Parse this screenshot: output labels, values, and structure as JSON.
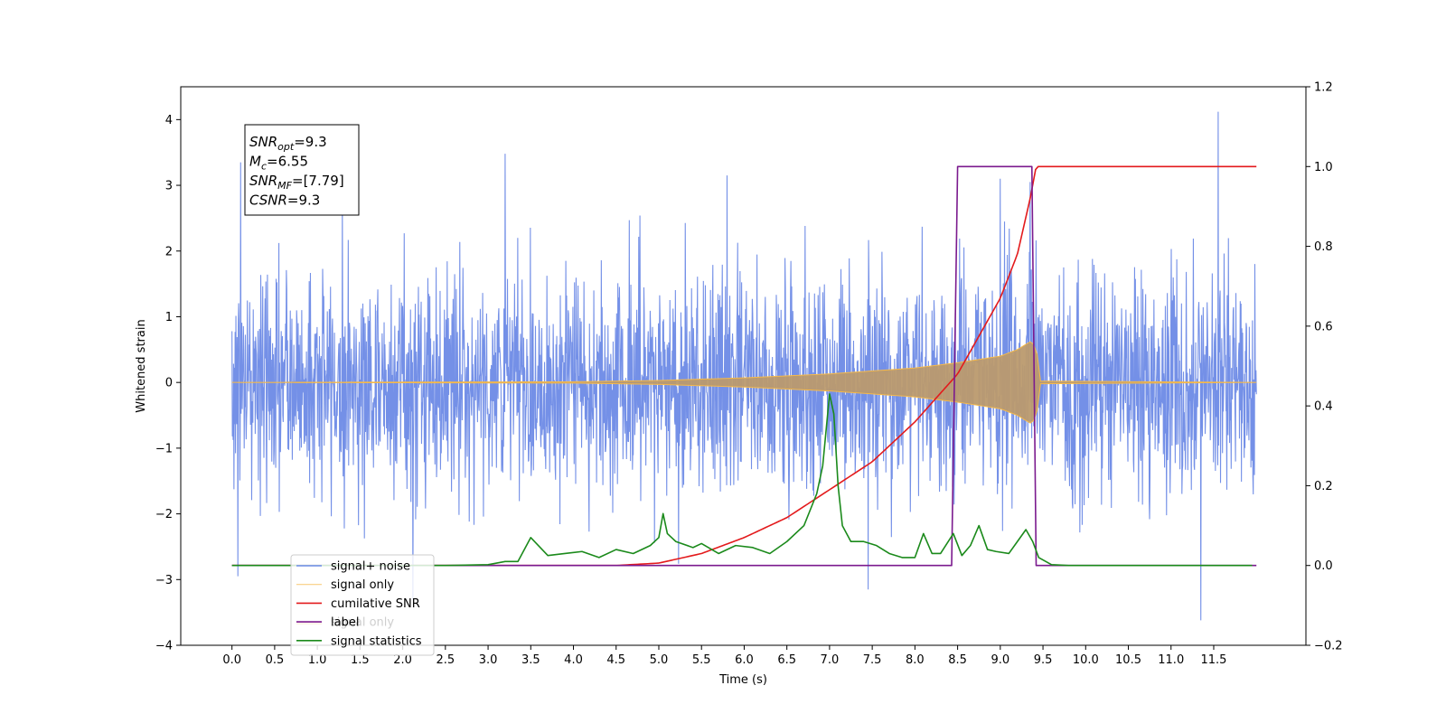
{
  "chart_data": {
    "type": "line",
    "title": "",
    "xlabel": "Time (s)",
    "ylabel": "Whitened strain",
    "y2label": "",
    "xlim": [
      -0.6,
      12.58
    ],
    "ylim": [
      -4,
      4.5
    ],
    "y2lim": [
      -0.2,
      1.2
    ],
    "xticks": [
      0.0,
      0.5,
      1.0,
      1.5,
      2.0,
      2.5,
      3.0,
      3.5,
      4.0,
      4.5,
      5.0,
      5.5,
      6.0,
      6.5,
      7.0,
      7.5,
      8.0,
      8.5,
      9.0,
      9.5,
      10.0,
      10.5,
      11.0,
      11.5
    ],
    "xtick_labels": [
      "0.0",
      "0.5",
      "1.0",
      "1.5",
      "2.0",
      "2.5",
      "3.0",
      "3.5",
      "4.0",
      "4.5",
      "5.0",
      "5.5",
      "6.0",
      "6.5",
      "7.0",
      "7.5",
      "8.0",
      "8.5",
      "9.0",
      "9.5",
      "10.0",
      "10.5",
      "11.0",
      "11.5"
    ],
    "yticks": [
      -4,
      -3,
      -2,
      -1,
      0,
      1,
      2,
      3,
      4
    ],
    "ytick_labels": [
      "−4",
      "−3",
      "−2",
      "−1",
      "0",
      "1",
      "2",
      "3",
      "4"
    ],
    "y2ticks": [
      -0.2,
      0.0,
      0.2,
      0.4,
      0.6,
      0.8,
      1.0,
      1.2
    ],
    "y2tick_labels": [
      "−0.2",
      "0.0",
      "0.2",
      "0.4",
      "0.6",
      "0.8",
      "1.0",
      "1.2"
    ],
    "grid": false,
    "legend_position": "bottom-left",
    "annotation": [
      {
        "sym": "SNR",
        "sub": "opt",
        "val": "=9.3"
      },
      {
        "sym": "M",
        "sub": "c",
        "val": "=6.55"
      },
      {
        "sym": "SNR",
        "sub": "MF",
        "val": "=[7.79]"
      },
      {
        "sym": "CSNR",
        "sub": "",
        "val": "=9.3"
      }
    ],
    "series": [
      {
        "name": "signal+ noise",
        "color": "#6d8ae6",
        "axis": "left",
        "x_range": [
          0.0,
          12.0
        ],
        "std": 0.8,
        "peaks_max": [
          3.35,
          3.48,
          3.15,
          3.1,
          3.3,
          3.05,
          4.12
        ],
        "min": -3.62,
        "spikes": [
          [
            0.1,
            3.35
          ],
          [
            3.2,
            3.48
          ],
          [
            5.8,
            3.15
          ],
          [
            9.0,
            3.1
          ],
          [
            9.35,
            3.05
          ],
          [
            11.55,
            4.12
          ],
          [
            11.35,
            -3.62
          ],
          [
            2.12,
            -3.3
          ],
          [
            7.45,
            -3.15
          ],
          [
            0.07,
            -2.95
          ]
        ]
      },
      {
        "name": "signal only",
        "color": "#f5b94a",
        "axis": "left",
        "x": [
          0.0,
          4.0,
          5.0,
          6.0,
          7.0,
          8.0,
          8.5,
          9.0,
          9.2,
          9.35,
          9.42,
          9.47,
          12.0
        ],
        "amplitude": [
          0.0,
          0.01,
          0.03,
          0.07,
          0.13,
          0.22,
          0.3,
          0.4,
          0.5,
          0.62,
          0.55,
          0.02,
          0.0
        ]
      },
      {
        "name": "cumilative SNR",
        "color": "#e31a1c",
        "axis": "right",
        "x": [
          0.0,
          4.5,
          5.0,
          5.5,
          6.0,
          6.5,
          7.0,
          7.5,
          8.0,
          8.5,
          9.0,
          9.2,
          9.35,
          9.42,
          9.45,
          12.0
        ],
        "values": [
          0.0,
          0.0,
          0.006,
          0.03,
          0.07,
          0.12,
          0.19,
          0.26,
          0.36,
          0.48,
          0.67,
          0.78,
          0.92,
          1.0,
          1.0,
          1.0
        ]
      },
      {
        "name": "label",
        "color": "#7b1a8e",
        "axis": "right",
        "x": [
          0.0,
          8.43,
          8.5,
          9.37,
          9.42,
          12.0
        ],
        "values": [
          0.0,
          0.0,
          1.0,
          1.0,
          0.0,
          0.0
        ]
      },
      {
        "name": "signal statistics",
        "color": "#1b8a1b",
        "axis": "right",
        "x": [
          0.0,
          2.5,
          3.0,
          3.2,
          3.35,
          3.5,
          3.7,
          3.9,
          4.1,
          4.3,
          4.5,
          4.7,
          4.9,
          5.0,
          5.05,
          5.1,
          5.2,
          5.4,
          5.5,
          5.7,
          5.9,
          6.1,
          6.3,
          6.5,
          6.7,
          6.85,
          6.92,
          7.0,
          7.05,
          7.1,
          7.15,
          7.25,
          7.4,
          7.55,
          7.7,
          7.85,
          8.0,
          8.1,
          8.2,
          8.3,
          8.45,
          8.55,
          8.65,
          8.75,
          8.85,
          8.95,
          9.1,
          9.2,
          9.3,
          9.38,
          9.45,
          9.6,
          9.8,
          11.0,
          11.95
        ],
        "values": [
          0.0,
          0.0,
          0.002,
          0.01,
          0.01,
          0.07,
          0.025,
          0.03,
          0.035,
          0.02,
          0.04,
          0.03,
          0.05,
          0.07,
          0.13,
          0.08,
          0.06,
          0.045,
          0.055,
          0.03,
          0.05,
          0.045,
          0.03,
          0.06,
          0.1,
          0.18,
          0.25,
          0.43,
          0.38,
          0.2,
          0.1,
          0.06,
          0.06,
          0.05,
          0.03,
          0.02,
          0.02,
          0.08,
          0.03,
          0.03,
          0.08,
          0.025,
          0.05,
          0.1,
          0.04,
          0.035,
          0.03,
          0.06,
          0.09,
          0.06,
          0.02,
          0.002,
          0.0,
          0.0,
          0.0
        ]
      }
    ],
    "legend_entries": [
      "signal+ noise",
      "signal only",
      "cumilative SNR",
      "label",
      "signal statistics"
    ],
    "legend_hidden_entries": [
      "signal only"
    ],
    "legend_hidden_colors": [
      "#f5b94a"
    ]
  }
}
